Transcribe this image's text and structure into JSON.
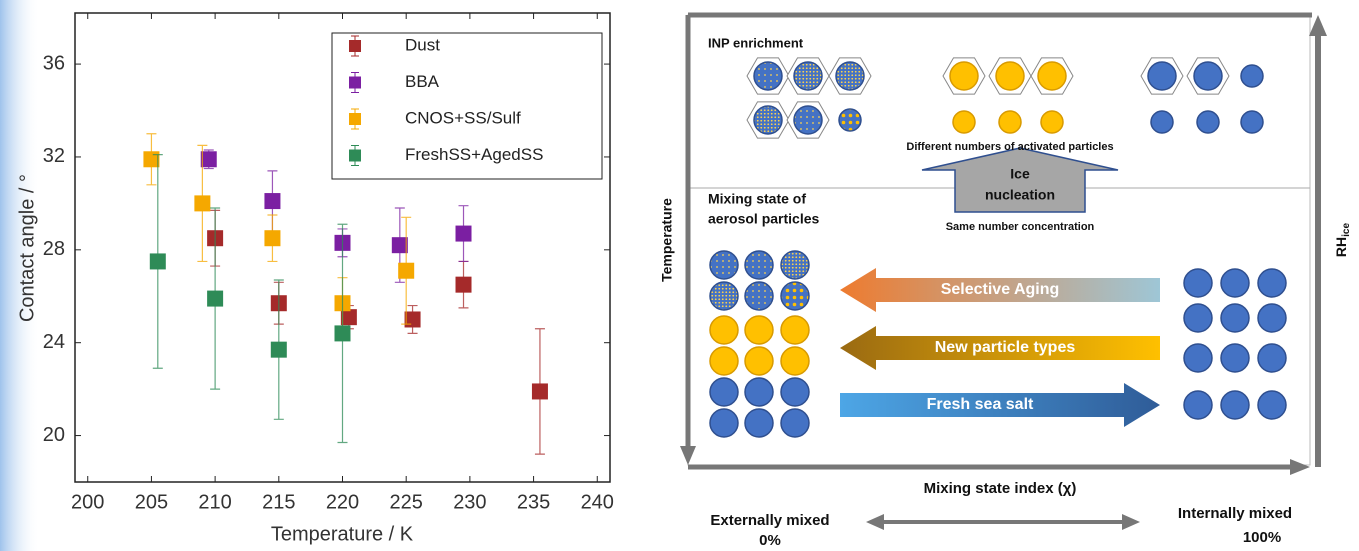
{
  "chart_data": {
    "type": "scatter",
    "xlabel": "Temperature / K",
    "ylabel": "Contact angle / °",
    "xlim": [
      199,
      241
    ],
    "ylim": [
      18,
      38.2
    ],
    "xticks": [
      200,
      205,
      210,
      215,
      220,
      225,
      230,
      235,
      240
    ],
    "yticks": [
      20,
      24,
      28,
      32,
      36
    ],
    "legend": "upper right",
    "grid": false,
    "series": [
      {
        "name": "Dust",
        "color": "#a52a2a",
        "x": [
          210,
          215,
          220.5,
          225.5,
          229.5,
          235.5
        ],
        "values": [
          28.5,
          25.7,
          25.1,
          25.0,
          26.5,
          21.9
        ],
        "errors": [
          1.2,
          0.9,
          0.5,
          0.6,
          1.0,
          2.7
        ]
      },
      {
        "name": "BBA",
        "color": "#7b1fa2",
        "x": [
          209.5,
          214.5,
          220,
          224.5,
          229.5
        ],
        "values": [
          31.9,
          30.1,
          28.3,
          28.2,
          28.7
        ],
        "errors": [
          0.4,
          1.3,
          0.6,
          1.6,
          1.2
        ]
      },
      {
        "name": "CNOS+SS/Sulf",
        "color": "#f5a800",
        "x": [
          205,
          209,
          214.5,
          220,
          225
        ],
        "values": [
          31.9,
          30.0,
          28.5,
          25.7,
          27.1
        ],
        "errors": [
          1.1,
          2.5,
          1.0,
          1.1,
          2.3
        ]
      },
      {
        "name": "FreshSS+AgedSS",
        "color": "#2e8b57",
        "x": [
          205.5,
          210,
          215,
          220
        ],
        "values": [
          27.5,
          25.9,
          23.7,
          24.4
        ],
        "errors": [
          4.6,
          3.9,
          3.0,
          4.7
        ]
      }
    ]
  },
  "diagram": {
    "inp_enrichment": "INP enrichment",
    "activated": "Different numbers of activated particles",
    "ice_nucleation": [
      "Ice",
      "nucleation"
    ],
    "mixing_state": [
      "Mixing state of",
      "aerosol particles"
    ],
    "same_concentration": "Same number concentration",
    "temperature": "Temperature",
    "rh": {
      "main": "RH",
      "sub": "ice"
    },
    "arrows": [
      "Selective Aging",
      "New particle types",
      "Fresh sea salt"
    ],
    "x_axis": "Mixing state index (χ)",
    "external": {
      "label": "Externally mixed",
      "percent": "0%"
    },
    "internal": {
      "label": "Internally mixed",
      "percent": "100%"
    }
  }
}
